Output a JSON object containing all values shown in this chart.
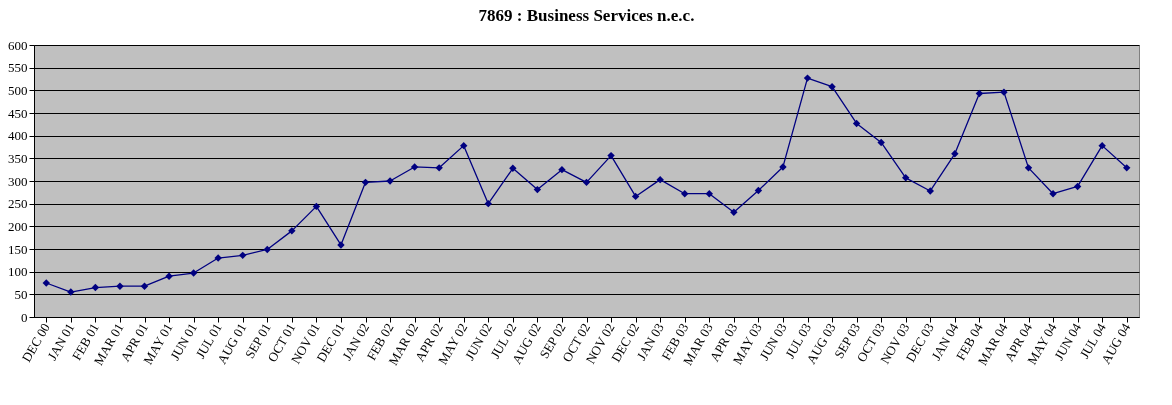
{
  "chart_data": {
    "type": "line",
    "title": "7869 : Business Services n.e.c.",
    "categories": [
      "DEC 00",
      "JAN 01",
      "FEB 01",
      "MAR 01",
      "APR 01",
      "MAY 01",
      "JUN 01",
      "JUL 01",
      "AUG 01",
      "SEP 01",
      "OCT 01",
      "NOV 01",
      "DEC 01",
      "JAN 02",
      "FEB 02",
      "MAR 02",
      "APR 02",
      "MAY 02",
      "JUN 02",
      "JUL 02",
      "AUG 02",
      "SEP 02",
      "OCT 02",
      "NOV 02",
      "DEC 02",
      "JAN 03",
      "FEB 03",
      "MAR 03",
      "APR 03",
      "MAY 03",
      "JUN 03",
      "JUL 03",
      "AUG 03",
      "SEP 03",
      "OCT 03",
      "NOV 03",
      "DEC 03",
      "JAN 04",
      "FEB 04",
      "MAR 04",
      "APR 04",
      "MAY 04",
      "JUN 04",
      "JUL 04",
      "AUG 04"
    ],
    "series": [
      {
        "color": "#000080",
        "values": [
          75,
          55,
          65,
          68,
          68,
          90,
          97,
          130,
          136,
          149,
          190,
          244,
          159,
          297,
          300,
          331,
          329,
          378,
          250,
          328,
          281,
          325,
          297,
          356,
          266,
          303,
          272,
          272,
          231,
          279,
          331,
          527,
          508,
          427,
          385,
          307,
          278,
          360,
          493,
          496,
          329,
          272,
          288,
          378,
          329
        ]
      }
    ],
    "ylim": [
      0,
      600
    ],
    "yticks": [
      0,
      50,
      100,
      150,
      200,
      250,
      300,
      350,
      400,
      450,
      500,
      550,
      600
    ],
    "grid": "y",
    "marker": "diamond",
    "line_style": "solid"
  }
}
